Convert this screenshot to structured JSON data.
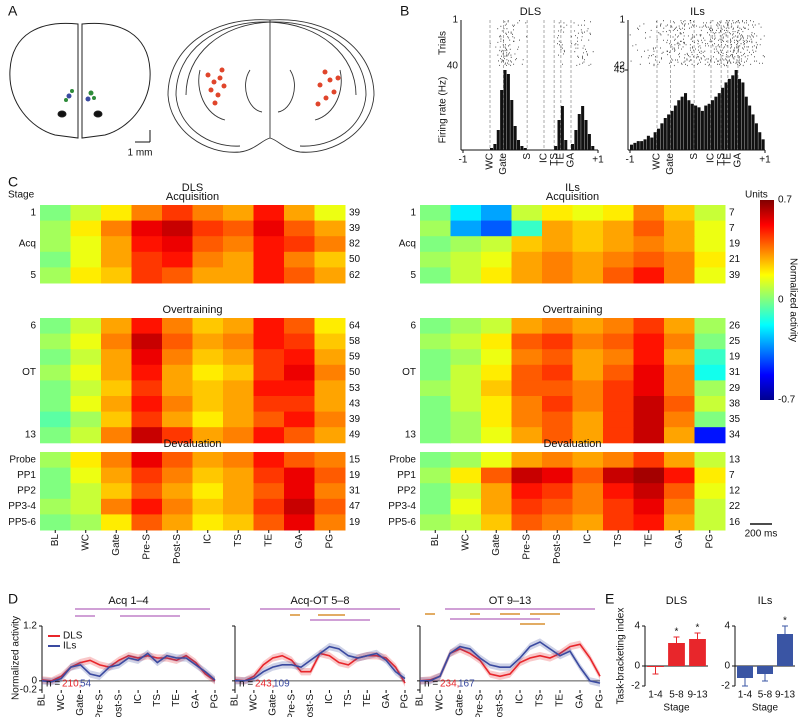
{
  "panel_labels": [
    "A",
    "B",
    "C",
    "D",
    "E"
  ],
  "a": {
    "scale": "1 mm"
  },
  "b": {
    "xlim": [
      -1,
      1
    ],
    "xticks": [
      -1,
      {
        "value": 1,
        "label": "+1"
      }
    ],
    "raster_label": "Trials",
    "rate_label": "Firing rate (Hz)",
    "panels": [
      {
        "title": "DLS",
        "trials": [
          1,
          40
        ],
        "ylim": [
          0,
          40
        ],
        "yticks": [],
        "events": [
          {
            "value": -0.6,
            "label": "WC"
          },
          {
            "value": -0.4,
            "label": "Gate"
          },
          {
            "value": -0.05,
            "label": "S"
          },
          {
            "value": 0.2,
            "label": "IC"
          },
          {
            "value": 0.35,
            "label": "TS"
          },
          {
            "value": 0.45,
            "label": "TE"
          },
          {
            "value": 0.6,
            "label": "GA"
          }
        ],
        "counts": [
          0,
          0,
          0,
          0,
          0,
          0,
          0,
          0,
          1,
          3,
          10,
          30,
          40,
          38,
          25,
          12,
          5,
          2,
          1,
          0,
          0,
          0,
          0,
          0,
          0,
          0,
          0,
          2,
          15,
          22,
          5,
          0,
          3,
          10,
          18,
          22,
          15,
          8,
          2,
          0
        ]
      },
      {
        "title": "ILs",
        "trials": [
          1,
          42
        ],
        "ylim": [
          0,
          45
        ],
        "yticks": [
          45
        ],
        "events": [
          {
            "value": -0.6,
            "label": "WC"
          },
          {
            "value": -0.4,
            "label": "Gate"
          },
          {
            "value": -0.05,
            "label": "S"
          },
          {
            "value": 0.2,
            "label": "IC"
          },
          {
            "value": 0.35,
            "label": "TS"
          },
          {
            "value": 0.45,
            "label": "TE"
          },
          {
            "value": 0.6,
            "label": "GA"
          }
        ],
        "counts": [
          3,
          4,
          5,
          5,
          6,
          8,
          7,
          10,
          12,
          15,
          18,
          20,
          22,
          25,
          28,
          30,
          32,
          28,
          26,
          25,
          24,
          22,
          25,
          26,
          28,
          30,
          32,
          35,
          38,
          40,
          42,
          45,
          40,
          38,
          30,
          25,
          20,
          15,
          10,
          6
        ]
      }
    ]
  },
  "c": {
    "stage_label": "Stage",
    "units_label": "Units",
    "scale_bar": "200 ms",
    "x_labels": [
      "BL",
      "WC",
      "Gate",
      "Pre-S",
      "Post-S",
      "IC",
      "TS",
      "TE",
      "GA",
      "PG"
    ],
    "colorbar": {
      "label": "Normalized activity",
      "clim": [
        -0.7,
        0.7
      ],
      "ticks": [
        0.7,
        0,
        -0.7
      ]
    },
    "maps": [
      {
        "title": "DLS",
        "groups": [
          {
            "title": "Acquisition",
            "stages": [
              "1",
              null,
              "Acq",
              null,
              "5"
            ],
            "units": [
              39,
              39,
              82,
              50,
              62
            ],
            "rows": [
              [
                0.0,
                0.1,
                0.2,
                0.35,
                0.45,
                0.35,
                0.3,
                0.5,
                0.3,
                0.15
              ],
              [
                0.05,
                0.2,
                0.35,
                0.55,
                0.6,
                0.45,
                0.4,
                0.55,
                0.4,
                0.3
              ],
              [
                0.05,
                0.15,
                0.3,
                0.5,
                0.55,
                0.4,
                0.35,
                0.5,
                0.45,
                0.35
              ],
              [
                0.0,
                0.15,
                0.3,
                0.45,
                0.5,
                0.35,
                0.3,
                0.5,
                0.35,
                0.25
              ],
              [
                0.05,
                0.2,
                0.25,
                0.45,
                0.4,
                0.3,
                0.3,
                0.5,
                0.4,
                0.3
              ]
            ]
          },
          {
            "title": "Overtraining",
            "stages": [
              "6",
              null,
              null,
              "OT",
              null,
              null,
              null,
              "13"
            ],
            "units": [
              64,
              58,
              59,
              50,
              53,
              43,
              39,
              49
            ],
            "rows": [
              [
                0.0,
                0.1,
                0.3,
                0.5,
                0.35,
                0.25,
                0.3,
                0.5,
                0.4,
                0.2
              ],
              [
                0.05,
                0.15,
                0.35,
                0.6,
                0.4,
                0.3,
                0.35,
                0.5,
                0.45,
                0.25
              ],
              [
                0.0,
                0.1,
                0.3,
                0.55,
                0.35,
                0.25,
                0.3,
                0.45,
                0.5,
                0.3
              ],
              [
                0.05,
                0.15,
                0.3,
                0.5,
                0.3,
                0.2,
                0.25,
                0.45,
                0.55,
                0.35
              ],
              [
                0.0,
                0.1,
                0.25,
                0.45,
                0.3,
                0.25,
                0.3,
                0.5,
                0.5,
                0.3
              ],
              [
                0.0,
                0.15,
                0.3,
                0.5,
                0.35,
                0.25,
                0.3,
                0.45,
                0.45,
                0.3
              ],
              [
                -0.05,
                0.05,
                0.25,
                0.45,
                0.3,
                0.2,
                0.3,
                0.4,
                0.5,
                0.35
              ],
              [
                0.0,
                0.1,
                0.35,
                0.6,
                0.45,
                0.3,
                0.35,
                0.5,
                0.4,
                0.3
              ]
            ]
          },
          {
            "title": "Devaluation",
            "stages": [
              "Probe",
              "PP1",
              "PP2",
              "PP3-4",
              "PP5-6"
            ],
            "units": [
              15,
              19,
              31,
              47,
              19
            ],
            "rows": [
              [
                0.05,
                0.2,
                0.35,
                0.55,
                0.4,
                0.3,
                0.35,
                0.5,
                0.4,
                0.35
              ],
              [
                0.0,
                0.15,
                0.3,
                0.45,
                0.35,
                0.25,
                0.3,
                0.45,
                0.55,
                0.4
              ],
              [
                0.0,
                0.1,
                0.25,
                0.4,
                0.3,
                0.2,
                0.3,
                0.4,
                0.55,
                0.35
              ],
              [
                0.05,
                0.1,
                0.35,
                0.5,
                0.35,
                0.25,
                0.3,
                0.45,
                0.6,
                0.4
              ],
              [
                0.0,
                0.05,
                0.2,
                0.4,
                0.3,
                0.2,
                0.25,
                0.4,
                0.55,
                0.35
              ]
            ]
          }
        ]
      },
      {
        "title": "ILs",
        "groups": [
          {
            "title": "Acquisition",
            "stages": [
              "1",
              null,
              "Acq",
              null,
              "5"
            ],
            "units": [
              7,
              7,
              19,
              21,
              39
            ],
            "rows": [
              [
                0.0,
                -0.2,
                -0.3,
                0.1,
                0.2,
                0.15,
                0.2,
                0.35,
                0.25,
                0.1
              ],
              [
                0.05,
                -0.3,
                -0.4,
                -0.1,
                0.3,
                0.25,
                0.3,
                0.4,
                0.3,
                0.15
              ],
              [
                0.0,
                0.05,
                0.1,
                0.25,
                0.3,
                0.25,
                0.3,
                0.35,
                0.3,
                0.15
              ],
              [
                0.05,
                0.1,
                0.15,
                0.3,
                0.35,
                0.3,
                0.35,
                0.4,
                0.35,
                0.2
              ],
              [
                0.0,
                0.1,
                0.2,
                0.3,
                0.35,
                0.3,
                0.4,
                0.5,
                0.35,
                0.15
              ]
            ]
          },
          {
            "title": "Overtraining",
            "stages": [
              "6",
              null,
              null,
              "OT",
              null,
              null,
              null,
              "13"
            ],
            "units": [
              26,
              25,
              19,
              31,
              29,
              38,
              35,
              34
            ],
            "rows": [
              [
                0.0,
                0.05,
                0.1,
                0.3,
                0.35,
                0.3,
                0.35,
                0.45,
                0.3,
                0.05
              ],
              [
                0.05,
                0.1,
                0.2,
                0.4,
                0.45,
                0.35,
                0.4,
                0.5,
                0.35,
                0.0
              ],
              [
                0.0,
                0.05,
                0.15,
                0.35,
                0.4,
                0.3,
                0.35,
                0.5,
                0.3,
                -0.1
              ],
              [
                0.0,
                0.1,
                0.2,
                0.4,
                0.45,
                0.3,
                0.4,
                0.55,
                0.35,
                -0.15
              ],
              [
                0.05,
                0.1,
                0.25,
                0.4,
                0.4,
                0.35,
                0.45,
                0.55,
                0.35,
                0.05
              ],
              [
                0.0,
                0.1,
                0.2,
                0.35,
                0.45,
                0.35,
                0.45,
                0.6,
                0.4,
                0.1
              ],
              [
                0.0,
                0.05,
                0.2,
                0.35,
                0.4,
                0.3,
                0.45,
                0.6,
                0.35,
                0.0
              ],
              [
                0.0,
                0.05,
                0.15,
                0.3,
                0.4,
                0.3,
                0.45,
                0.6,
                0.3,
                -0.5
              ]
            ]
          },
          {
            "title": "Devaluation",
            "stages": [
              "Probe",
              "PP1",
              "PP2",
              "PP3-4",
              "PP5-6"
            ],
            "units": [
              13,
              7,
              12,
              22,
              16
            ],
            "rows": [
              [
                0.0,
                0.05,
                0.15,
                0.3,
                0.35,
                0.3,
                0.35,
                0.45,
                0.3,
                0.1
              ],
              [
                0.05,
                0.2,
                0.4,
                0.6,
                0.55,
                0.4,
                0.6,
                0.65,
                0.5,
                0.2
              ],
              [
                0.0,
                0.1,
                0.3,
                0.5,
                0.45,
                0.35,
                0.5,
                0.6,
                0.4,
                0.15
              ],
              [
                0.0,
                0.15,
                0.3,
                0.45,
                0.4,
                0.35,
                0.45,
                0.55,
                0.35,
                0.1
              ],
              [
                0.05,
                0.1,
                0.25,
                0.4,
                0.35,
                0.3,
                0.45,
                0.5,
                0.3,
                0.1
              ]
            ]
          }
        ]
      }
    ]
  },
  "d": {
    "ylabel": "Normalized activity",
    "ylim": [
      -0.2,
      1.2
    ],
    "yticks": [
      -0.2,
      0,
      1.2
    ],
    "band": 0.08,
    "xlim": [
      0,
      18
    ],
    "xticks": [
      {
        "value": 0,
        "label": "BL"
      },
      {
        "value": 2,
        "label": "WC"
      },
      {
        "value": 4,
        "label": "Gate"
      },
      {
        "value": 6,
        "label": "Pre-S"
      },
      {
        "value": 8,
        "label": "Post-S"
      },
      {
        "value": 10,
        "label": "IC"
      },
      {
        "value": 12,
        "label": "TS"
      },
      {
        "value": 14,
        "label": "TE"
      },
      {
        "value": 16,
        "label": "GA"
      },
      {
        "value": 18,
        "label": "PG"
      }
    ],
    "series": [
      {
        "name": "DLS",
        "color": "#e8262b"
      },
      {
        "name": "ILs",
        "color": "#3a4aa0"
      }
    ],
    "panels": [
      {
        "title": "Acq 1–4",
        "n_prefix": "n =",
        "n": [
          "210,",
          "54"
        ],
        "values": [
          [
            0.02,
            0.0,
            0.1,
            0.3,
            0.4,
            0.45,
            0.35,
            0.3,
            0.45,
            0.55,
            0.5,
            0.55,
            0.5,
            0.5,
            0.45,
            0.55,
            0.4,
            0.15,
            0.0
          ],
          [
            0.0,
            -0.02,
            0.05,
            0.3,
            0.35,
            0.15,
            0.1,
            0.3,
            0.35,
            0.5,
            0.45,
            0.6,
            0.4,
            0.55,
            0.5,
            0.5,
            0.35,
            0.2,
            0.02
          ]
        ]
      },
      {
        "title": "Acq-OT 5–8",
        "n_prefix": "n =",
        "n": [
          "243,",
          "109"
        ],
        "values": [
          [
            0.02,
            0.0,
            0.1,
            0.35,
            0.5,
            0.55,
            0.45,
            0.2,
            0.2,
            0.6,
            0.55,
            0.4,
            0.35,
            0.5,
            0.55,
            0.55,
            0.5,
            0.3,
            -0.05
          ],
          [
            0.0,
            0.0,
            0.05,
            0.2,
            0.3,
            0.35,
            0.35,
            0.3,
            0.45,
            0.6,
            0.75,
            0.7,
            0.55,
            0.5,
            0.55,
            0.6,
            0.45,
            0.2,
            0.05
          ]
        ]
      },
      {
        "title": "OT 9–13",
        "n_prefix": "n =",
        "n": [
          "234,",
          "167"
        ],
        "values": [
          [
            0.0,
            0.02,
            0.1,
            0.6,
            0.7,
            0.6,
            0.45,
            0.15,
            0.1,
            0.15,
            0.4,
            0.5,
            0.55,
            0.5,
            0.6,
            0.75,
            0.8,
            0.5,
            0.1
          ],
          [
            0.0,
            0.0,
            0.1,
            0.6,
            0.75,
            0.7,
            0.5,
            0.35,
            0.3,
            0.3,
            0.5,
            0.75,
            0.85,
            0.7,
            0.55,
            0.65,
            0.3,
            0.0,
            -0.05
          ]
        ]
      }
    ]
  },
  "e": {
    "ylabel": "Task-bracketing index",
    "xlabel": "Stage",
    "ylim": [
      -2,
      4
    ],
    "yticks": [
      -2,
      0,
      4
    ],
    "categories": [
      "1-4",
      "5-8",
      "9-13"
    ],
    "panels": [
      {
        "title": "DLS",
        "color": "#e8262b",
        "values": [
          -0.1,
          2.3,
          2.7
        ],
        "errors": [
          0.7,
          0.6,
          0.6
        ],
        "annotations": [
          null,
          "*",
          "*"
        ]
      },
      {
        "title": "ILs",
        "color": "#3a55a4",
        "values": [
          -1.2,
          -0.8,
          3.2
        ],
        "errors": [
          0.8,
          0.7,
          0.8
        ],
        "annotations": [
          null,
          null,
          "*"
        ]
      }
    ]
  }
}
